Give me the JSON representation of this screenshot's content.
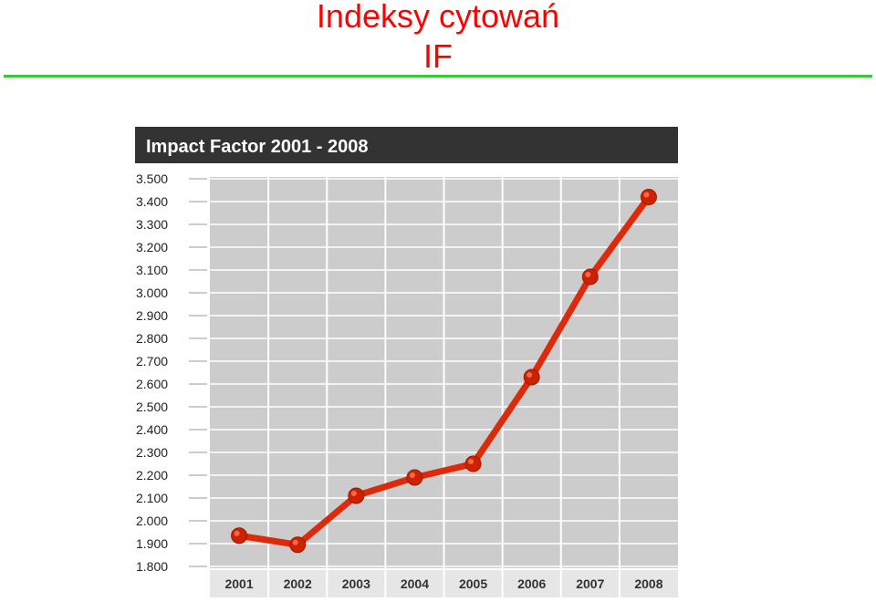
{
  "slide": {
    "title_line1": "Indeksy cytowań",
    "title_line2": "IF"
  },
  "colors": {
    "title": "#ff0000",
    "rule": "#33cc33",
    "header_bg": "#333333",
    "plot_bg": "#cccccc",
    "line": "#dd2a0a",
    "marker": "#cc2200"
  },
  "chart_data": {
    "type": "line",
    "title": "Impact Factor 2001 - 2008",
    "categories": [
      "2001",
      "2002",
      "2003",
      "2004",
      "2005",
      "2006",
      "2007",
      "2008"
    ],
    "series": [
      {
        "values": [
          1.935,
          1.895,
          2.11,
          2.19,
          2.25,
          2.63,
          3.07,
          3.42
        ]
      }
    ],
    "y_ticks": [
      "3.500",
      "3.400",
      "3.300",
      "3.200",
      "3.100",
      "3.000",
      "2.900",
      "2.800",
      "2.700",
      "2.600",
      "2.500",
      "2.400",
      "2.300",
      "2.200",
      "2.100",
      "2.000",
      "1.900",
      "1.800"
    ],
    "ylim": [
      1.8,
      3.5
    ],
    "grid": true
  }
}
